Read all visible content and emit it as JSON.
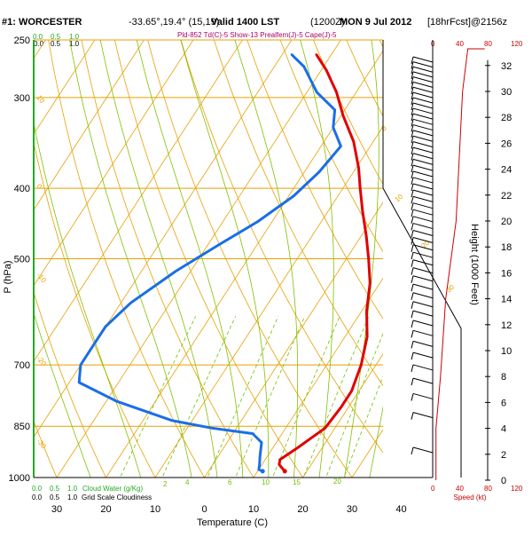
{
  "header": {
    "station": "#1: WORCESTER",
    "coords": "-33.65°,19.4° (15,19)",
    "valid": "Valid 1400 LST",
    "utc": "(1200Z)",
    "date": "MON 9 Jul 2012",
    "fcst": "[18hrFcst]@2156z",
    "indices": "Pld-852 Td(C)-5 Show-13 Prealfem(J)-5 Cape(J)-5"
  },
  "colors": {
    "isotherm": "#e8a000",
    "isobar": "#e8a000",
    "dry_adiabat": "#e8a000",
    "moist_adiabat": "#80c000",
    "mixing_ratio": "#70c000",
    "temperature": "#e00000",
    "dewpoint": "#1a6ee8",
    "wind": "#000000",
    "speed": "#cc0000",
    "green_axis": "#22aa22"
  },
  "axis_labels": {
    "pressure": "P (hPa)",
    "temperature": "Temperature (C)",
    "height": "Height (1000 Feet)",
    "speed": "Speed (kt)",
    "cloud_water": "Cloud Water (g/Kg)",
    "grid_cloud": "Grid Scale Cloudiness"
  },
  "top_scales": {
    "green": [
      "0.0",
      "0.5",
      "1.0"
    ],
    "black": [
      "0.0",
      "0.5",
      "1.0"
    ],
    "speed": [
      "0",
      "40",
      "80",
      "120"
    ]
  },
  "bottom_scales": {
    "green": [
      "0.0",
      "0.5",
      "1.0"
    ],
    "black": [
      "0.0",
      "0.5",
      "1.0"
    ],
    "speed": [
      "0",
      "40",
      "80",
      "120"
    ]
  },
  "chart_data": {
    "type": "line",
    "title": "#1: WORCESTER",
    "xlabel": "Temperature (C)",
    "ylabel": "P (hPa)",
    "ylabel_right": "Height (1000 Feet)",
    "y_scale": "log",
    "ylim": [
      1000,
      250
    ],
    "pressure_ticks": [
      1000,
      850,
      700,
      500,
      400,
      300,
      250
    ],
    "temperature_ticks": [
      "30",
      "20",
      "10",
      "0",
      "10",
      "20",
      "30",
      "40"
    ],
    "height_ticks": [
      0,
      2,
      4,
      6,
      8,
      10,
      12,
      14,
      16,
      18,
      20,
      22,
      24,
      26,
      28,
      30,
      32
    ],
    "mixing_ratio_labels": [
      "2",
      "4",
      "6",
      "10",
      "15",
      "20"
    ],
    "dry_adiabat_labels": [
      "10",
      "0",
      "-10",
      "-20",
      "-30"
    ],
    "moist_adiabat_labels": [
      "0",
      "10",
      "20",
      "30"
    ],
    "series": [
      {
        "name": "Temperature",
        "points": [
          [
            15.5,
            980
          ],
          [
            13.5,
            960
          ],
          [
            13,
            945
          ],
          [
            15,
            910
          ],
          [
            18,
            855
          ],
          [
            18.5,
            800
          ],
          [
            18.5,
            760
          ],
          [
            17,
            700
          ],
          [
            14.5,
            640
          ],
          [
            11,
            590
          ],
          [
            8,
            540
          ],
          [
            4.5,
            500
          ],
          [
            1,
            465
          ],
          [
            -3,
            430
          ],
          [
            -6.5,
            400
          ],
          [
            -9.5,
            375
          ],
          [
            -14,
            345
          ],
          [
            -19.5,
            318
          ],
          [
            -24,
            295
          ],
          [
            -29,
            275
          ],
          [
            -33,
            262
          ]
        ]
      },
      {
        "name": "Dewpoint",
        "points": [
          [
            11,
            980
          ],
          [
            10,
            975
          ],
          [
            9.5,
            960
          ],
          [
            8.5,
            935
          ],
          [
            7,
            895
          ],
          [
            4,
            870
          ],
          [
            -5,
            855
          ],
          [
            -14,
            835
          ],
          [
            -28,
            785
          ],
          [
            -38,
            740
          ],
          [
            -40,
            700
          ],
          [
            -40,
            660
          ],
          [
            -40,
            620
          ],
          [
            -38,
            575
          ],
          [
            -33,
            520
          ],
          [
            -28,
            480
          ],
          [
            -23,
            445
          ],
          [
            -19,
            410
          ],
          [
            -17,
            380
          ],
          [
            -16,
            350
          ],
          [
            -20,
            330
          ],
          [
            -22,
            312
          ],
          [
            -28,
            295
          ],
          [
            -34,
            272
          ],
          [
            -38,
            262
          ]
        ]
      }
    ],
    "speed_profile": [
      [
        0,
        5
      ],
      [
        4,
        5
      ],
      [
        8,
        12
      ],
      [
        14,
        20
      ],
      [
        20,
        36
      ],
      [
        30,
        46
      ],
      [
        40,
        54
      ],
      [
        50,
        61
      ],
      [
        60,
        70
      ],
      [
        70,
        80
      ]
    ],
    "wind_barb_count": 50
  }
}
